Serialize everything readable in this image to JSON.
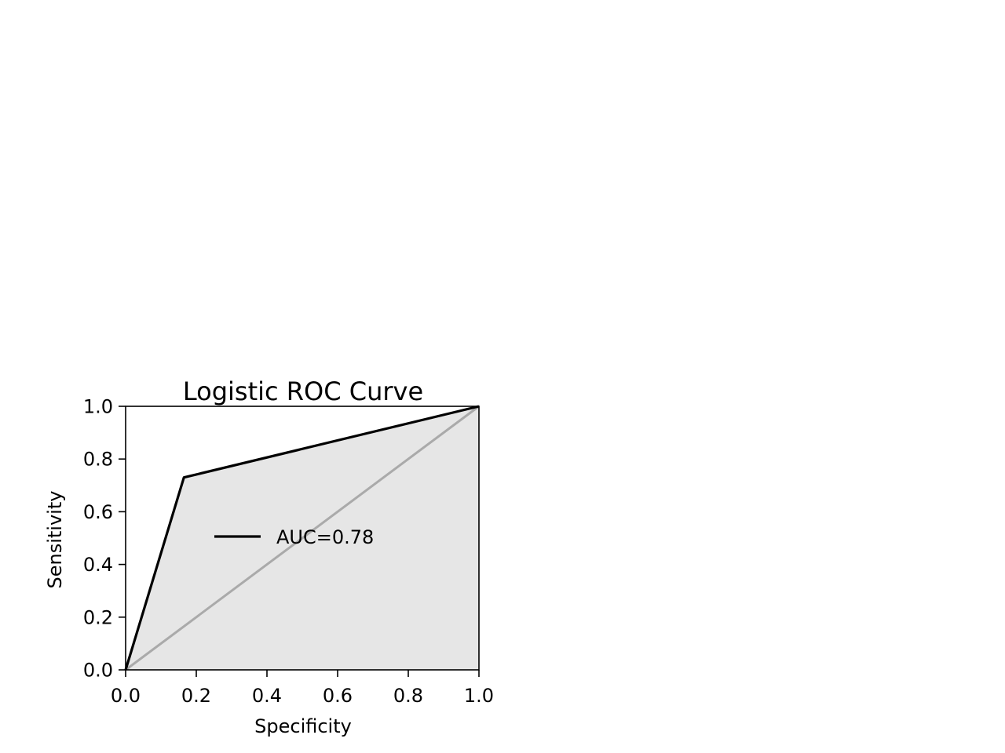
{
  "chart_data": {
    "type": "line",
    "title": "Logistic ROC Curve",
    "xlabel": "Specificity",
    "ylabel": "Sensitivity",
    "xlim": [
      0.0,
      1.0
    ],
    "ylim": [
      0.0,
      1.0
    ],
    "xticks": [
      "0.0",
      "0.2",
      "0.4",
      "0.6",
      "0.8",
      "1.0"
    ],
    "yticks": [
      "0.0",
      "0.2",
      "0.4",
      "0.6",
      "0.8",
      "1.0"
    ],
    "grid": false,
    "legend_position": "center",
    "series": [
      {
        "name": "AUC=0.78",
        "x": [
          0.0,
          0.165,
          1.0
        ],
        "y": [
          0.0,
          0.73,
          1.0
        ],
        "color": "#000000"
      }
    ],
    "reference_line": {
      "x": [
        0.0,
        1.0
      ],
      "y": [
        0.0,
        1.0
      ],
      "color": "#aaaaaa"
    },
    "fill": {
      "color": "#e6e6e6",
      "from_series": 0
    }
  }
}
